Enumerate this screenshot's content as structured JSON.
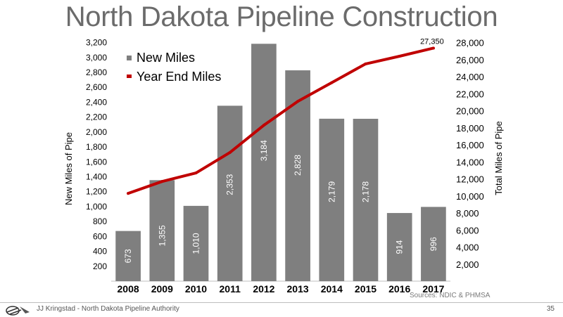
{
  "title": "North Dakota Pipeline Construction",
  "source": "Sources: NDIC & PHMSA",
  "footer": {
    "author": "JJ Kringstad - North Dakota Pipeline Authority",
    "page": "35"
  },
  "colors": {
    "bar": "#7f7f7f",
    "line": "#c00000",
    "text": "#000000",
    "title": "#6b6b6b"
  },
  "chart_data": {
    "type": "bar",
    "title": "North Dakota Pipeline Construction",
    "categories": [
      "2008",
      "2009",
      "2010",
      "2011",
      "2012",
      "2013",
      "2014",
      "2015",
      "2016",
      "2017"
    ],
    "series": [
      {
        "name": "New Miles",
        "type": "bar",
        "axis": "left",
        "values": [
          673,
          1355,
          1010,
          2353,
          3184,
          2828,
          2179,
          2178,
          914,
          996
        ],
        "labels": [
          "673",
          "1,355",
          "1,010",
          "2,353",
          "3,184",
          "2,828",
          "2,179",
          "2,178",
          "914",
          "996"
        ]
      },
      {
        "name": "Year End Miles",
        "type": "line",
        "axis": "right",
        "values": [
          10300,
          11700,
          12700,
          15100,
          18300,
          21100,
          23300,
          25500,
          26400,
          27350
        ],
        "end_label": "27,350"
      }
    ],
    "ylabel_left": "New Miles of Pipe",
    "ylabel_right": "Total Miles of Pipe",
    "ylim_left": [
      0,
      3300
    ],
    "ylim_right": [
      0,
      28875
    ],
    "yticks_left": [
      200,
      400,
      600,
      800,
      1000,
      1200,
      1400,
      1600,
      1800,
      2000,
      2200,
      2400,
      2600,
      2800,
      3000,
      3200
    ],
    "yticks_left_labels": [
      "200",
      "400",
      "600",
      "800",
      "1,000",
      "1,200",
      "1,400",
      "1,600",
      "1,800",
      "2,000",
      "2,200",
      "2,400",
      "2,600",
      "2,800",
      "3,000",
      "3,200"
    ],
    "yticks_right": [
      2000,
      4000,
      6000,
      8000,
      10000,
      12000,
      14000,
      16000,
      18000,
      20000,
      22000,
      24000,
      26000,
      28000
    ],
    "yticks_right_labels": [
      "2,000",
      "4,000",
      "6,000",
      "8,000",
      "10,000",
      "12,000",
      "14,000",
      "16,000",
      "18,000",
      "20,000",
      "22,000",
      "24,000",
      "26,000",
      "28,000"
    ],
    "grid": false,
    "legend_position": "top-left"
  }
}
